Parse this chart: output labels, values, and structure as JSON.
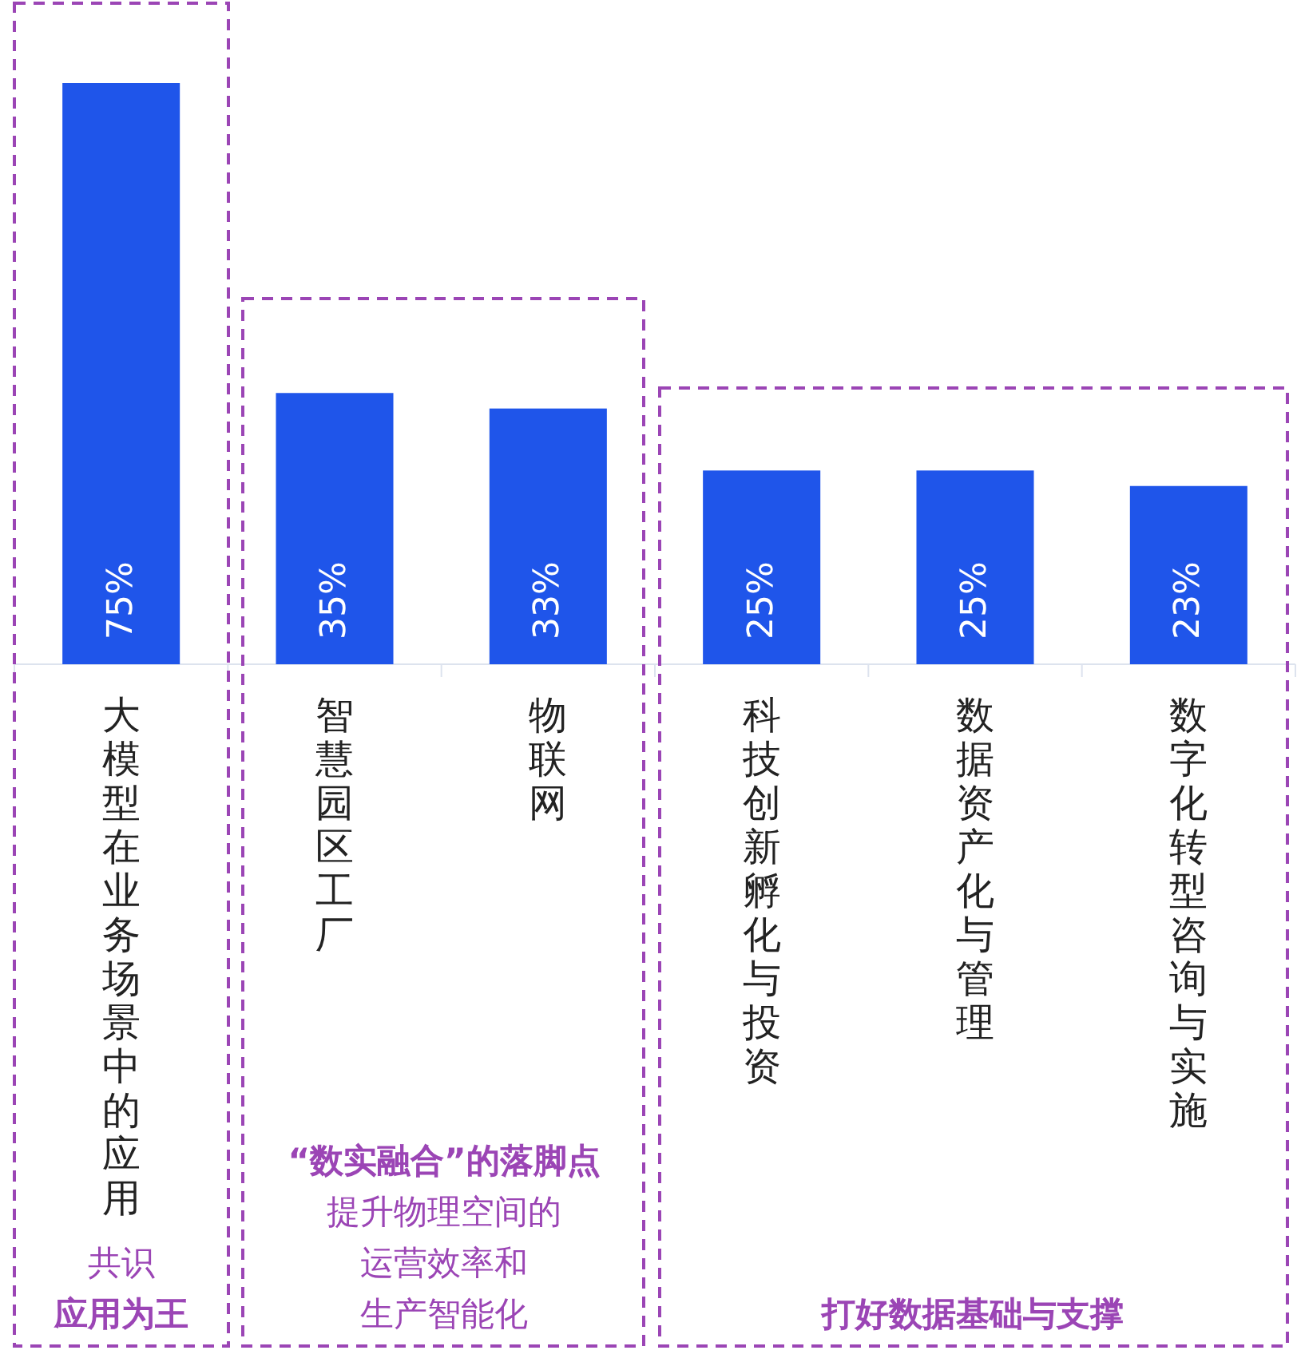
{
  "chart_data": {
    "type": "bar",
    "categories": [
      "大模型在业务场景中的应用",
      "智慧园区工厂",
      "物联网",
      "科技创新孵化与投资",
      "数据资产化与管理",
      "数字化转型咨询与实施"
    ],
    "values": [
      75,
      35,
      33,
      25,
      25,
      23
    ],
    "value_labels": [
      "75%",
      "35%",
      "33%",
      "25%",
      "25%",
      "23%"
    ],
    "color": "#1f55ea",
    "annotations": [
      "共识",
      "应用为王",
      "“数实融合”的落脚点",
      "提升物理空间的",
      "运营效率和",
      "生产智能化",
      "打好数据基础与支撑"
    ]
  }
}
